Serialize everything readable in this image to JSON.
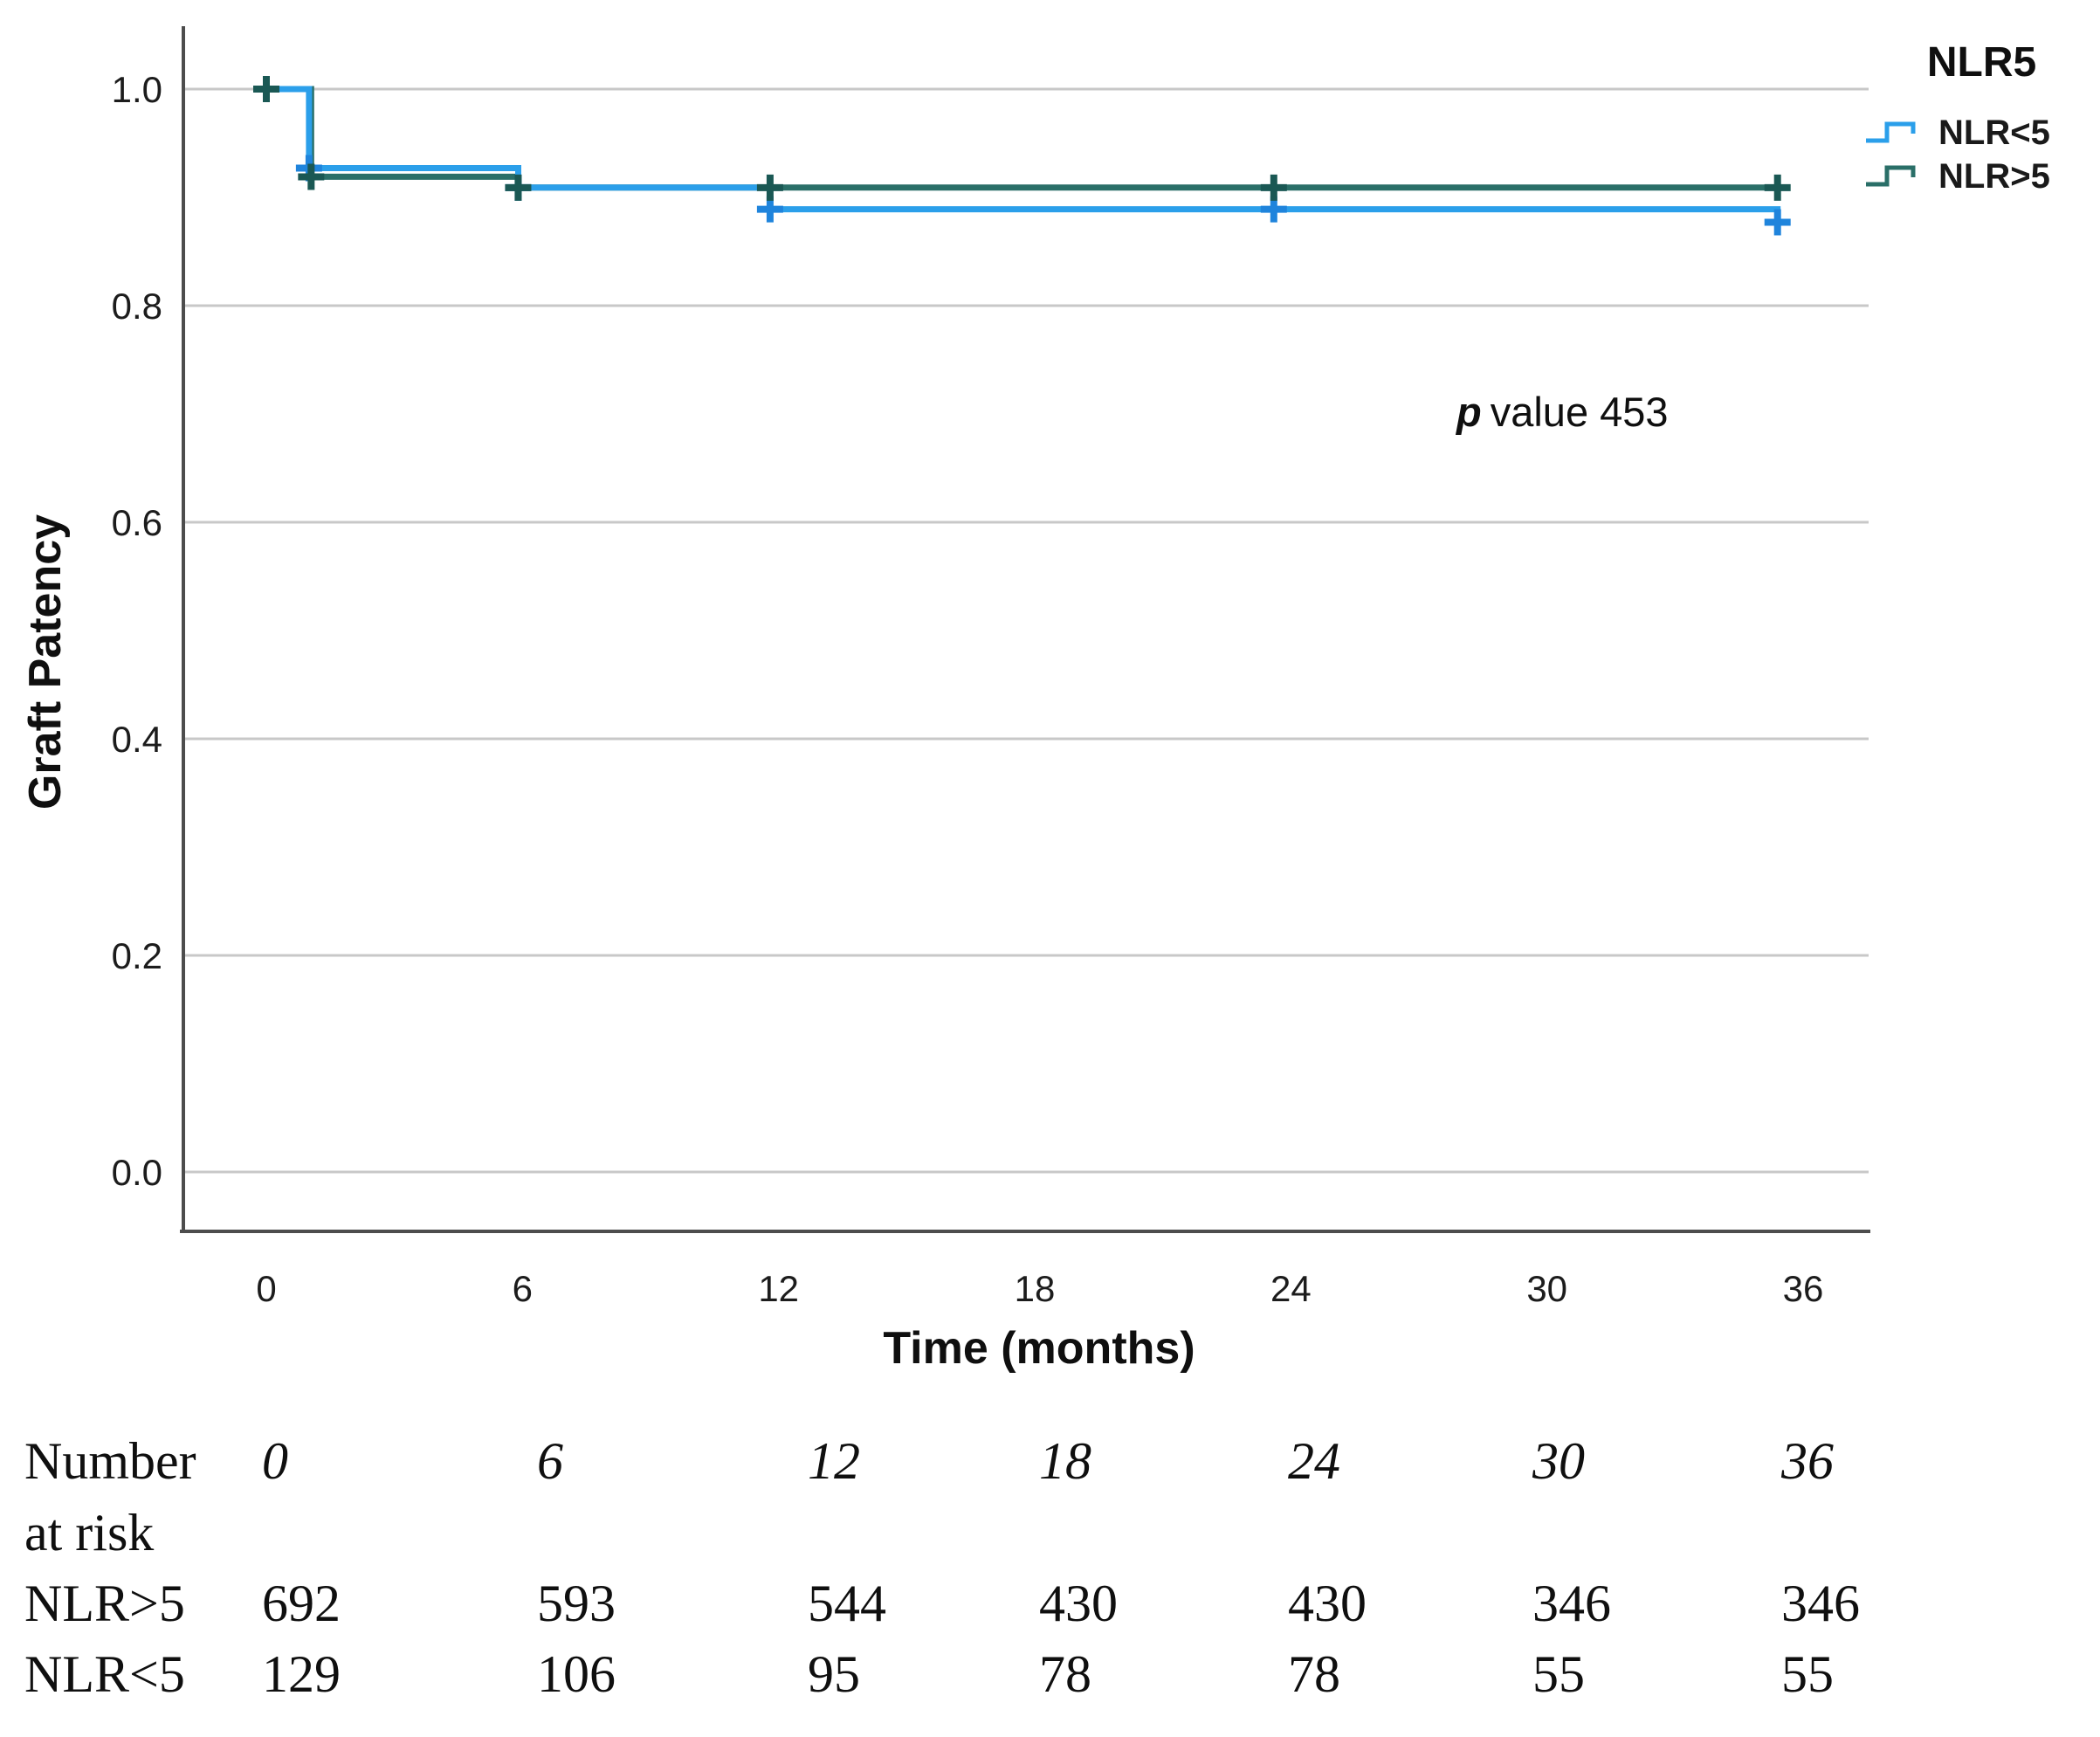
{
  "chart_data": {
    "type": "line",
    "subtype": "kaplan-meier-step",
    "title": "",
    "xlabel": "Time (months)",
    "ylabel": "Graft Patency",
    "xticks": [
      0,
      6,
      12,
      18,
      24,
      30,
      36
    ],
    "ytick_labels": [
      "1.0",
      "0.8",
      "0.6",
      "0.4",
      "0.2",
      "0.0"
    ],
    "ytick_values": [
      1.0,
      0.8,
      0.6,
      0.4,
      0.2,
      0.0
    ],
    "xlim": [
      -2,
      37.6
    ],
    "ylim": [
      -0.055,
      1.063
    ],
    "grid": "horizontal-only",
    "grid_color": "#c8c8c8",
    "axis_color": "#4d4d4d",
    "legend_position": "top-right",
    "series": [
      {
        "name": "NLR<5",
        "color": "#2B9FEA",
        "censor_color": "#1F84DC",
        "steps": [
          [
            0,
            1.0
          ],
          [
            1,
            1.0
          ],
          [
            1,
            0.927
          ],
          [
            5.9,
            0.927
          ],
          [
            5.9,
            0.909
          ],
          [
            11.8,
            0.909
          ],
          [
            11.8,
            0.889
          ],
          [
            35.4,
            0.889
          ],
          [
            35.4,
            0.877
          ],
          [
            35.6,
            0.877
          ]
        ],
        "censors": [
          [
            1,
            0.927
          ],
          [
            5.9,
            0.909
          ],
          [
            11.8,
            0.889
          ],
          [
            23.6,
            0.889
          ],
          [
            35.4,
            0.877
          ]
        ]
      },
      {
        "name": "NLR>5",
        "color": "#2A6F68",
        "censor_color": "#1A5854",
        "steps": [
          [
            0,
            1.0
          ],
          [
            1.05,
            1.0
          ],
          [
            1.05,
            0.919
          ],
          [
            5.9,
            0.919
          ],
          [
            5.9,
            0.909
          ],
          [
            35.6,
            0.909
          ]
        ],
        "censors": [
          [
            0,
            1.0
          ],
          [
            1.05,
            0.919
          ],
          [
            5.9,
            0.909
          ],
          [
            11.8,
            0.909
          ],
          [
            23.6,
            0.909
          ],
          [
            35.4,
            0.909
          ]
        ]
      }
    ]
  },
  "legend": {
    "title": "NLR5"
  },
  "annotation": {
    "p_symbol": "p",
    "p_rest": "value 453"
  },
  "risk_table": {
    "header_line1": "Number",
    "header_line2": "at risk",
    "times": [
      "0",
      "6",
      "12",
      "18",
      "24",
      "30",
      "36"
    ],
    "rows": [
      {
        "label": "NLR>5",
        "values": [
          "692",
          "593",
          "544",
          "430",
          "430",
          "346",
          "346"
        ]
      },
      {
        "label": "NLR<5",
        "values": [
          "129",
          "106",
          "95",
          "78",
          "78",
          "55",
          "55"
        ]
      }
    ]
  }
}
